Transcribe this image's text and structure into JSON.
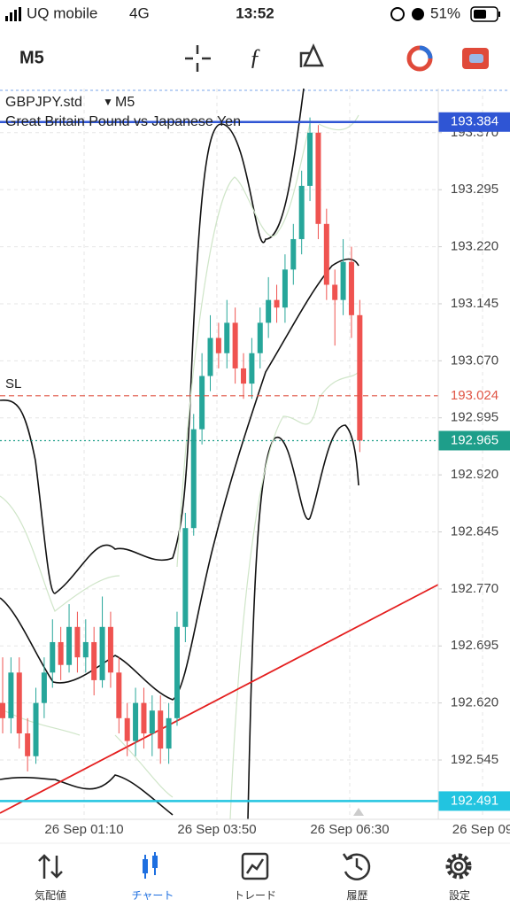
{
  "status_bar": {
    "carrier": "UQ mobile",
    "network": "4G",
    "time": "13:52",
    "battery": "51%"
  },
  "toolbar": {
    "timeframe": "M5"
  },
  "chart_data": {
    "type": "candlestick",
    "symbol": "GBPJPY.std",
    "timeframe": "M5",
    "description": "Great Britain Pound vs Japanese Yen",
    "up_color": "#26a69a",
    "down_color": "#ef5350",
    "grid": true,
    "ylim": [
      192.467,
      193.428
    ],
    "yticks": [
      {
        "value": 193.37,
        "label": "193.370"
      },
      193.295,
      {
        "value": 193.22,
        "label": "193.220"
      },
      193.145,
      {
        "value": 193.07,
        "label": "193.070"
      },
      192.995,
      {
        "value": 192.92,
        "label": "192.920"
      },
      192.845,
      {
        "value": 192.77,
        "label": "192.770"
      },
      192.695,
      {
        "value": 192.62,
        "label": "192.620"
      },
      192.545
    ],
    "time_labels": [
      "26 Sep 01:10",
      "26 Sep 03:50",
      "26 Sep 06:30",
      "26 Sep 09"
    ],
    "price_lines": [
      {
        "value": 193.384,
        "color": "#2f55d4",
        "style": "solid"
      },
      {
        "name": "SL",
        "value": 193.024,
        "color": "#e05545",
        "style": "dashed"
      },
      {
        "value": 192.965,
        "color": "#1e9e8a",
        "style": "dotted"
      },
      {
        "value": 192.491,
        "color": "#22c4e0",
        "style": "solid"
      }
    ],
    "candles": [
      [
        192.62,
        192.68,
        192.58,
        192.6
      ],
      [
        192.6,
        192.68,
        192.58,
        192.66
      ],
      [
        192.66,
        192.68,
        192.56,
        192.58
      ],
      [
        192.58,
        192.6,
        192.53,
        192.55
      ],
      [
        192.55,
        192.64,
        192.54,
        192.62
      ],
      [
        192.62,
        192.68,
        192.6,
        192.66
      ],
      [
        192.66,
        192.73,
        192.64,
        192.7
      ],
      [
        192.7,
        192.72,
        192.65,
        192.67
      ],
      [
        192.67,
        192.75,
        192.66,
        192.72
      ],
      [
        192.72,
        192.74,
        192.66,
        192.68
      ],
      [
        192.68,
        192.73,
        192.66,
        192.7
      ],
      [
        192.7,
        192.72,
        192.63,
        192.65
      ],
      [
        192.65,
        192.76,
        192.64,
        192.72
      ],
      [
        192.72,
        192.74,
        192.64,
        192.66
      ],
      [
        192.66,
        192.68,
        192.58,
        192.6
      ],
      [
        192.6,
        192.62,
        192.55,
        192.57
      ],
      [
        192.57,
        192.64,
        192.55,
        192.62
      ],
      [
        192.62,
        192.64,
        192.56,
        192.58
      ],
      [
        192.58,
        192.63,
        192.55,
        192.61
      ],
      [
        192.61,
        192.63,
        192.54,
        192.56
      ],
      [
        192.56,
        192.62,
        192.54,
        192.6
      ],
      [
        192.6,
        192.74,
        192.59,
        192.72
      ],
      [
        192.72,
        192.87,
        192.7,
        192.85
      ],
      [
        192.85,
        193.0,
        192.84,
        192.98
      ],
      [
        192.98,
        193.08,
        192.96,
        193.05
      ],
      [
        193.05,
        193.13,
        193.03,
        193.1
      ],
      [
        193.1,
        193.12,
        193.06,
        193.08
      ],
      [
        193.08,
        193.15,
        193.06,
        193.12
      ],
      [
        193.12,
        193.14,
        193.04,
        193.06
      ],
      [
        193.06,
        193.08,
        193.02,
        193.04
      ],
      [
        193.04,
        193.1,
        193.02,
        193.08
      ],
      [
        193.08,
        193.14,
        193.06,
        193.12
      ],
      [
        193.12,
        193.18,
        193.1,
        193.15
      ],
      [
        193.15,
        193.17,
        193.12,
        193.14
      ],
      [
        193.14,
        193.21,
        193.12,
        193.19
      ],
      [
        193.19,
        193.25,
        193.17,
        193.23
      ],
      [
        193.23,
        193.32,
        193.21,
        193.3
      ],
      [
        193.3,
        193.39,
        193.28,
        193.37
      ],
      [
        193.37,
        193.38,
        193.23,
        193.25
      ],
      [
        193.25,
        193.27,
        193.15,
        193.17
      ],
      [
        193.17,
        193.19,
        193.09,
        193.15
      ],
      [
        193.15,
        193.23,
        193.13,
        193.2
      ],
      [
        193.2,
        193.22,
        193.1,
        193.13
      ],
      [
        193.13,
        193.15,
        192.95,
        192.965
      ]
    ]
  },
  "nav": {
    "items": [
      "気配値",
      "チャート",
      "トレード",
      "履歴",
      "設定"
    ]
  }
}
